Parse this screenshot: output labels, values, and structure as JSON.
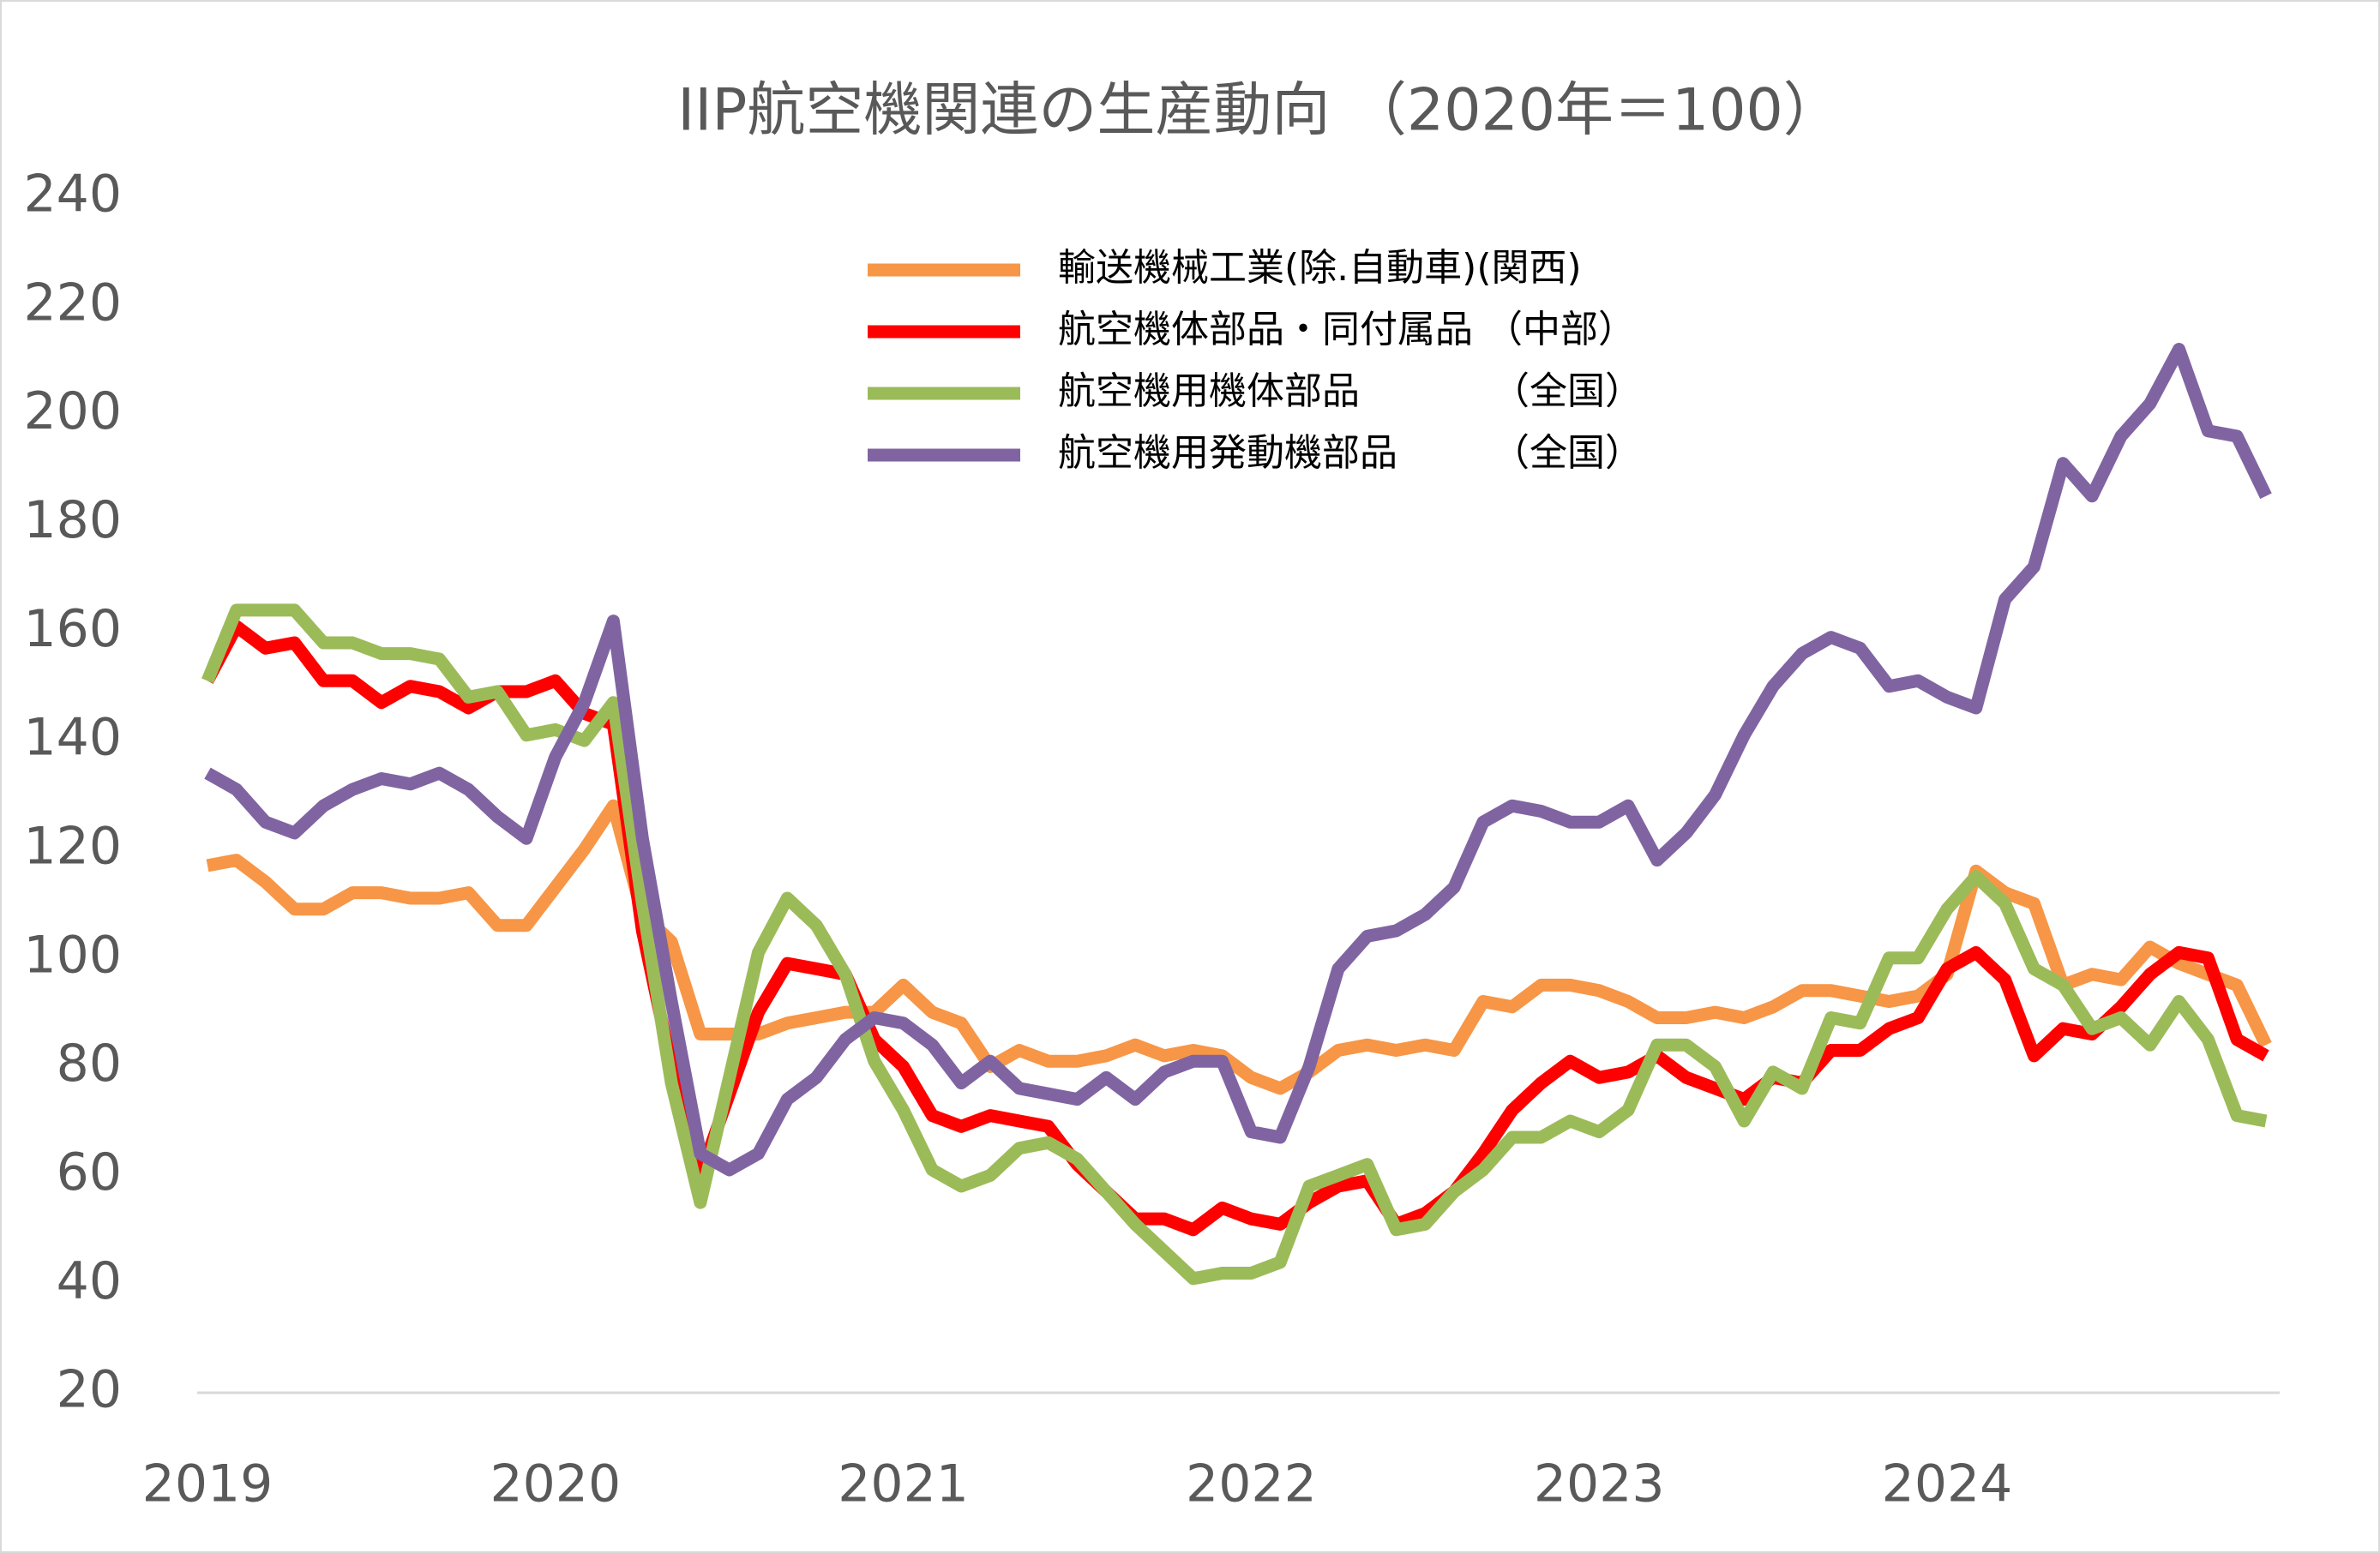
{
  "chart_data": {
    "type": "line",
    "title": "IIP航空機関連の生産動向 （2020年＝100）",
    "categories": [
      "2019",
      null,
      null,
      null,
      null,
      null,
      null,
      null,
      null,
      null,
      null,
      null,
      "2020",
      null,
      null,
      null,
      null,
      null,
      null,
      null,
      null,
      null,
      null,
      null,
      "2021",
      null,
      null,
      null,
      null,
      null,
      null,
      null,
      null,
      null,
      null,
      null,
      "2022",
      null,
      null,
      null,
      null,
      null,
      null,
      null,
      null,
      null,
      null,
      null,
      "2023",
      null,
      null,
      null,
      null,
      null,
      null,
      null,
      null,
      null,
      null,
      null,
      "2024",
      null,
      null,
      null,
      null,
      null,
      null,
      null,
      null,
      null,
      null,
      null
    ],
    "ylim": [
      20,
      240
    ],
    "yticks": [
      20,
      40,
      60,
      80,
      100,
      120,
      140,
      160,
      180,
      200,
      220,
      240
    ],
    "grid": false,
    "series": [
      {
        "name": "輸送機械工業(除.自動車)(関西)",
        "color": "#f79646",
        "values": [
          117,
          118,
          114,
          109,
          109,
          112,
          112,
          111,
          111,
          112,
          106,
          106,
          113,
          120,
          128,
          108,
          103,
          86,
          86,
          86,
          88,
          89,
          90,
          90,
          95,
          90,
          88,
          80,
          83,
          81,
          81,
          82,
          84,
          82,
          83,
          82,
          78,
          76,
          79,
          83,
          84,
          83,
          84,
          83,
          92,
          91,
          95,
          95,
          94,
          92,
          89,
          89,
          90,
          89,
          91,
          94,
          94,
          93,
          92,
          93,
          97,
          116,
          112,
          110,
          95,
          97,
          96,
          102,
          99,
          97,
          95,
          84
        ]
      },
      {
        "name": "航空機体部品・同付属品 （中部）",
        "color": "#ff0000",
        "values": [
          151,
          161,
          157,
          158,
          151,
          151,
          147,
          150,
          149,
          146,
          149,
          149,
          151,
          145,
          143,
          105,
          80,
          60,
          75,
          90,
          99,
          98,
          97,
          85,
          80,
          71,
          69,
          71,
          70,
          69,
          62,
          57,
          52,
          52,
          50,
          54,
          52,
          51,
          55,
          58,
          59,
          51,
          53,
          57,
          64,
          72,
          77,
          81,
          78,
          79,
          82,
          78,
          76,
          74,
          78,
          77,
          83,
          83,
          87,
          89,
          98,
          101,
          96,
          82,
          87,
          86,
          91,
          97,
          101,
          100,
          85,
          82
        ]
      },
      {
        "name": "航空機用機体部品　　　　（全国）",
        "color": "#9bbb59",
        "values": [
          151,
          164,
          164,
          164,
          158,
          158,
          156,
          156,
          155,
          148,
          149,
          141,
          142,
          140,
          147,
          110,
          77,
          55,
          78,
          101,
          111,
          106,
          97,
          81,
          72,
          61,
          58,
          60,
          65,
          66,
          63,
          57,
          51,
          46,
          41,
          42,
          42,
          44,
          58,
          60,
          62,
          50,
          51,
          57,
          61,
          67,
          67,
          70,
          68,
          72,
          84,
          84,
          80,
          70,
          79,
          76,
          89,
          88,
          100,
          100,
          109,
          115,
          110,
          98,
          95,
          87,
          89,
          84,
          92,
          85,
          71,
          70
        ]
      },
      {
        "name": "航空機用発動機部品　　　（全国）",
        "color": "#8064a2",
        "values": [
          134,
          131,
          125,
          123,
          128,
          131,
          133,
          132,
          134,
          131,
          126,
          122,
          137,
          147,
          162,
          122,
          92,
          64,
          61,
          64,
          74,
          78,
          85,
          89,
          88,
          84,
          77,
          81,
          76,
          75,
          74,
          78,
          74,
          79,
          81,
          81,
          68,
          67,
          80,
          98,
          104,
          105,
          108,
          113,
          125,
          128,
          127,
          125,
          125,
          128,
          118,
          123,
          130,
          141,
          150,
          156,
          159,
          157,
          150,
          151,
          148,
          146,
          166,
          172,
          191,
          185,
          196,
          202,
          212,
          197,
          196,
          185
        ]
      }
    ]
  }
}
